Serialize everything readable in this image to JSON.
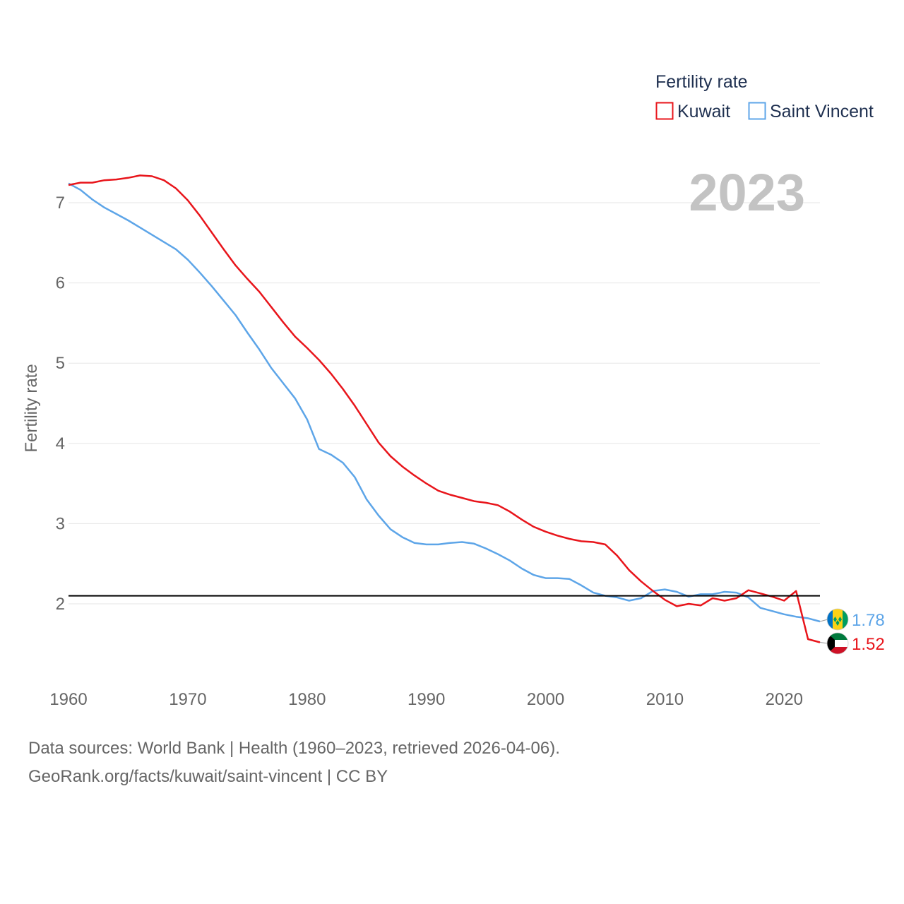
{
  "chart_data": {
    "type": "line",
    "ylabel": "Fertility rate",
    "xlabel": "",
    "xlim": [
      1960,
      2023
    ],
    "ylim": [
      1.2,
      7.4
    ],
    "yticks": [
      2,
      3,
      4,
      5,
      6,
      7
    ],
    "xticks": [
      1960,
      1970,
      1980,
      1990,
      2000,
      2010,
      2020
    ],
    "reference_line": 2.1,
    "current_year": "2023",
    "legend": {
      "title": "Fertility rate",
      "placement": "top-right"
    },
    "x": [
      1960,
      1961,
      1962,
      1963,
      1964,
      1965,
      1966,
      1967,
      1968,
      1969,
      1970,
      1971,
      1972,
      1973,
      1974,
      1975,
      1976,
      1977,
      1978,
      1979,
      1980,
      1981,
      1982,
      1983,
      1984,
      1985,
      1986,
      1987,
      1988,
      1989,
      1990,
      1991,
      1992,
      1993,
      1994,
      1995,
      1996,
      1997,
      1998,
      1999,
      2000,
      2001,
      2002,
      2003,
      2004,
      2005,
      2006,
      2007,
      2008,
      2009,
      2010,
      2011,
      2012,
      2013,
      2014,
      2015,
      2016,
      2017,
      2018,
      2019,
      2020,
      2021,
      2022,
      2023
    ],
    "series": [
      {
        "name": "Kuwait",
        "color": "#e8151b",
        "end_label": "1.52",
        "flag": "kuwait-flag-icon",
        "values": [
          7.22,
          7.25,
          7.25,
          7.28,
          7.29,
          7.31,
          7.34,
          7.33,
          7.28,
          7.18,
          7.03,
          6.84,
          6.63,
          6.42,
          6.22,
          6.05,
          5.89,
          5.7,
          5.51,
          5.33,
          5.19,
          5.04,
          4.87,
          4.68,
          4.47,
          4.24,
          4.01,
          3.84,
          3.71,
          3.6,
          3.5,
          3.41,
          3.36,
          3.32,
          3.28,
          3.26,
          3.23,
          3.15,
          3.05,
          2.96,
          2.9,
          2.85,
          2.81,
          2.78,
          2.77,
          2.74,
          2.6,
          2.42,
          2.28,
          2.16,
          2.05,
          1.97,
          2.0,
          1.98,
          2.07,
          2.04,
          2.07,
          2.17,
          2.13,
          2.09,
          2.04,
          2.16,
          1.56,
          1.52
        ]
      },
      {
        "name": "Saint Vincent",
        "color": "#5da5e8",
        "end_label": "1.78",
        "flag": "saint-vincent-flag-icon",
        "values": [
          7.24,
          7.16,
          7.04,
          6.94,
          6.86,
          6.78,
          6.69,
          6.6,
          6.51,
          6.42,
          6.29,
          6.13,
          5.96,
          5.78,
          5.6,
          5.38,
          5.17,
          4.94,
          4.75,
          4.56,
          4.3,
          3.93,
          3.86,
          3.76,
          3.58,
          3.3,
          3.1,
          2.93,
          2.83,
          2.76,
          2.74,
          2.74,
          2.76,
          2.77,
          2.75,
          2.69,
          2.62,
          2.54,
          2.44,
          2.36,
          2.32,
          2.32,
          2.31,
          2.23,
          2.14,
          2.1,
          2.08,
          2.04,
          2.07,
          2.16,
          2.18,
          2.15,
          2.09,
          2.12,
          2.12,
          2.15,
          2.14,
          2.08,
          1.95,
          1.91,
          1.87,
          1.84,
          1.82,
          1.78
        ]
      }
    ]
  },
  "footer": {
    "line1": "Data sources: World Bank | Health (1960–2023, retrieved 2026-04-06).",
    "line2": "GeoRank.org/facts/kuwait/saint-vincent | CC BY"
  }
}
